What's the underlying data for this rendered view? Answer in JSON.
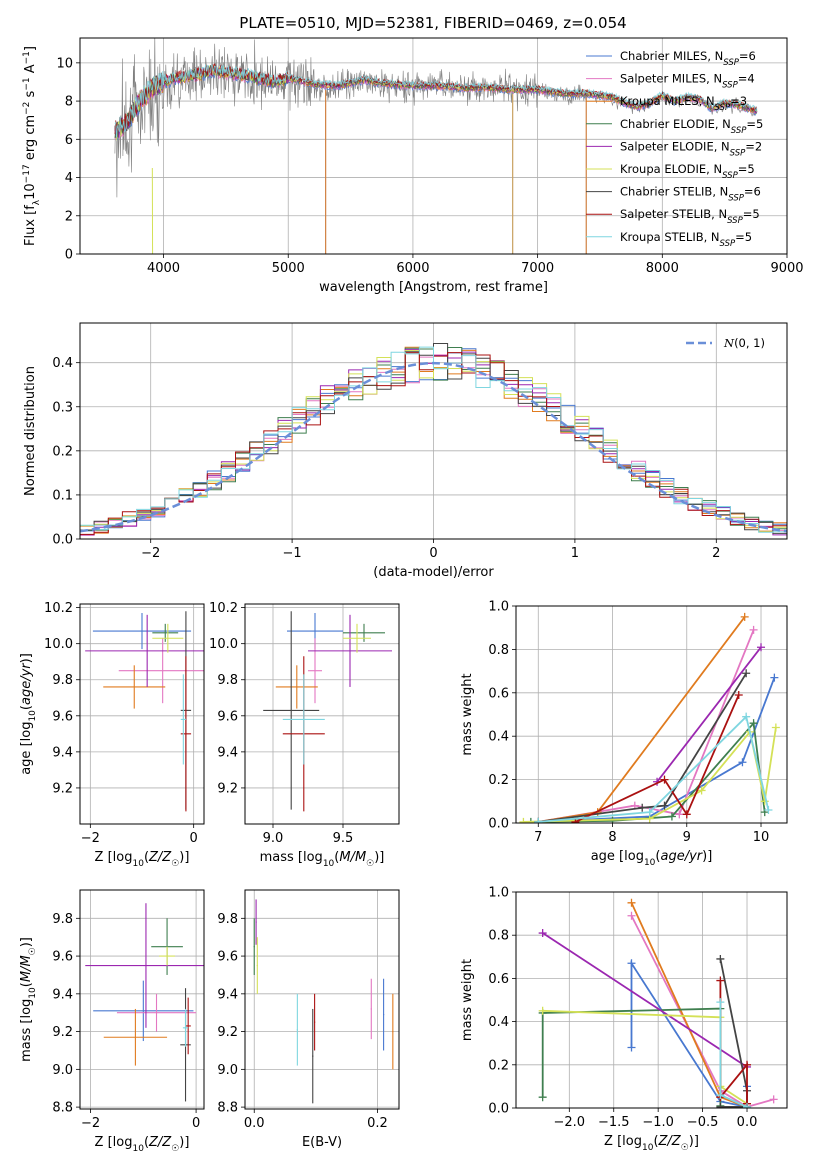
{
  "title": "PLATE=0510, MJD=52381, FIBERID=0469, z=0.054",
  "models": [
    {
      "name": "Chabrier MILES, N",
      "sub": "SSP",
      "n": "=6",
      "color": "#4878d0"
    },
    {
      "name": "Salpeter MILES, N",
      "sub": "SSP",
      "n": "=4",
      "color": "#e377c2"
    },
    {
      "name": "Kroupa MILES, N",
      "sub": "SSP",
      "n": "=3",
      "color": "#e07b1f"
    },
    {
      "name": "Chabrier ELODIE, N",
      "sub": "SSP",
      "n": "=5",
      "color": "#3f7f4f"
    },
    {
      "name": "Salpeter ELODIE, N",
      "sub": "SSP",
      "n": "=2",
      "color": "#9b27b0"
    },
    {
      "name": "Kroupa ELODIE, N",
      "sub": "SSP",
      "n": "=5",
      "color": "#d4e157"
    },
    {
      "name": "Chabrier STELIB, N",
      "sub": "SSP",
      "n": "=6",
      "color": "#444444"
    },
    {
      "name": "Salpeter STELIB, N",
      "sub": "SSP",
      "n": "=5",
      "color": "#aa1111"
    },
    {
      "name": "Kroupa STELIB, N",
      "sub": "SSP",
      "n": "=5",
      "color": "#7fd6e0"
    }
  ],
  "chart_data": [
    {
      "id": "spectrum",
      "type": "line",
      "title": "PLATE=0510, MJD=52381, FIBERID=0469, z=0.054",
      "xlabel": "wavelength [Angstrom, rest frame]",
      "ylabel": "Flux [f_λ 10^-17 erg cm^-2 s^-1 A^-1]",
      "xlim": [
        3330,
        9000
      ],
      "ylim": [
        0,
        11.3
      ],
      "xticks": [
        4000,
        5000,
        6000,
        7000,
        8000,
        9000
      ],
      "yticks": [
        0,
        2,
        4,
        6,
        8,
        10
      ],
      "continuum": {
        "x": [
          3610,
          3700,
          3800,
          3900,
          4000,
          4100,
          4200,
          4300,
          4400,
          4500,
          4600,
          4700,
          4800,
          4900,
          5000,
          5100,
          5200,
          5300,
          5400,
          5500,
          5600,
          5700,
          5800,
          5900,
          6000,
          6100,
          6200,
          6300,
          6400,
          6500,
          6600,
          6700,
          6800,
          6900,
          7000,
          7100,
          7200,
          7300,
          7400
        ],
        "y": [
          6.6,
          6.9,
          8.0,
          8.5,
          8.8,
          9.1,
          9.3,
          9.4,
          9.5,
          9.5,
          9.4,
          9.3,
          9.2,
          9.1,
          9.2,
          9.0,
          8.9,
          8.7,
          8.8,
          8.9,
          9.0,
          8.9,
          8.8,
          8.7,
          8.8,
          8.9,
          8.8,
          8.7,
          8.8,
          8.6,
          8.7,
          8.8,
          8.6,
          8.5,
          8.6,
          8.4,
          8.3,
          8.4,
          8.3
        ]
      },
      "model_continuum": {
        "x": [
          3610,
          3700,
          3800,
          3900,
          4000,
          4100,
          4200,
          4300,
          4400,
          4500,
          4600,
          4700,
          4800,
          4900,
          5000,
          5200,
          5400,
          5600,
          5800,
          6000,
          6200,
          6400,
          6600,
          6800,
          7000,
          7200,
          7400,
          7600,
          7700,
          7800,
          7900,
          8000,
          8100,
          8200,
          8300,
          8400,
          8500,
          8600,
          8800
        ],
        "y": [
          6.4,
          6.8,
          7.9,
          8.6,
          9.0,
          9.2,
          9.3,
          9.4,
          9.6,
          9.5,
          9.4,
          9.3,
          9.1,
          9.0,
          9.2,
          8.9,
          8.8,
          9.1,
          8.9,
          8.8,
          8.8,
          8.7,
          8.7,
          8.6,
          8.6,
          8.4,
          8.4,
          8.2,
          7.9,
          7.7,
          7.9,
          8.3,
          8.0,
          8.2,
          8.1,
          7.6,
          7.9,
          7.8,
          7.4
        ]
      }
    },
    {
      "id": "residuals",
      "type": "histogram",
      "xlabel": "(data-model)/error",
      "ylabel": "Normed distribution",
      "xlim": [
        -2.5,
        2.5
      ],
      "ylim": [
        0,
        0.49
      ],
      "xticks": [
        -2,
        -1,
        0,
        1,
        2
      ],
      "yticks": [
        0.0,
        0.1,
        0.2,
        0.3,
        0.4
      ],
      "reference": {
        "label": "N(0,1)",
        "mu": 0,
        "sigma": 1
      },
      "bin_edges_start": -2.5,
      "bin_width": 0.1,
      "reference_hist": [
        0.02,
        0.028,
        0.035,
        0.045,
        0.055,
        0.068,
        0.082,
        0.098,
        0.112,
        0.132,
        0.152,
        0.172,
        0.195,
        0.222,
        0.245,
        0.268,
        0.29,
        0.315,
        0.332,
        0.348,
        0.362,
        0.375,
        0.388,
        0.395,
        0.4,
        0.402,
        0.398,
        0.392,
        0.38,
        0.368,
        0.352,
        0.335,
        0.318,
        0.296,
        0.272,
        0.25,
        0.225,
        0.2,
        0.176,
        0.155,
        0.135,
        0.116,
        0.1,
        0.083,
        0.07,
        0.057,
        0.047,
        0.037,
        0.03,
        0.023
      ]
    },
    {
      "id": "age_vs_Z",
      "type": "scatter",
      "xlabel": "Z [log10(Z/Z☉)]",
      "ylabel": "age [log10(age/yr)]",
      "xlim": [
        -2.2,
        0.2
      ],
      "ylim": [
        9.0,
        10.22
      ],
      "xticks": [
        -2,
        0
      ],
      "yticks": [
        9.2,
        9.4,
        9.6,
        9.8,
        10.0,
        10.2
      ],
      "points": [
        {
          "model": 0,
          "x": -1.0,
          "y": 10.07,
          "xerr": 0.95,
          "yerr": 0.1
        },
        {
          "model": 1,
          "x": -0.6,
          "y": 9.85,
          "xerr": 0.85,
          "yerr": 0.18
        },
        {
          "model": 2,
          "x": -1.15,
          "y": 9.76,
          "xerr": 0.6,
          "yerr": 0.12
        },
        {
          "model": 3,
          "x": -0.55,
          "y": 10.06,
          "xerr": 0.25,
          "yerr": 0.05
        },
        {
          "model": 4,
          "x": -0.9,
          "y": 9.96,
          "xerr": 1.2,
          "yerr": 0.2
        },
        {
          "model": 5,
          "x": -0.5,
          "y": 10.03,
          "xerr": 0.3,
          "yerr": 0.08
        },
        {
          "model": 6,
          "x": -0.15,
          "y": 9.63,
          "xerr": 0.1,
          "yerr": 0.55
        },
        {
          "model": 7,
          "x": -0.15,
          "y": 9.5,
          "xerr": 0.1,
          "yerr": 0.43
        },
        {
          "model": 8,
          "x": -0.2,
          "y": 9.58,
          "xerr": 0.05,
          "yerr": 0.25
        }
      ]
    },
    {
      "id": "age_vs_mass",
      "type": "scatter",
      "xlabel": "mass [log10(M/M☉)]",
      "ylabel": "",
      "xlim": [
        8.8,
        9.9
      ],
      "ylim": [
        9.0,
        10.22
      ],
      "xticks": [
        9.0,
        9.5
      ],
      "yticks": [
        9.2,
        9.4,
        9.6,
        9.8,
        10.0,
        10.2
      ],
      "points": [
        {
          "model": 0,
          "x": 9.3,
          "y": 10.07,
          "xerr": 0.2,
          "yerr": 0.1
        },
        {
          "model": 1,
          "x": 9.3,
          "y": 9.85,
          "xerr": 0.05,
          "yerr": 0.18
        },
        {
          "model": 2,
          "x": 9.17,
          "y": 9.76,
          "xerr": 0.15,
          "yerr": 0.12
        },
        {
          "model": 3,
          "x": 9.65,
          "y": 10.06,
          "xerr": 0.15,
          "yerr": 0.05
        },
        {
          "model": 4,
          "x": 9.55,
          "y": 9.96,
          "xerr": 0.3,
          "yerr": 0.2
        },
        {
          "model": 5,
          "x": 9.6,
          "y": 10.03,
          "xerr": 0.1,
          "yerr": 0.08
        },
        {
          "model": 6,
          "x": 9.13,
          "y": 9.63,
          "xerr": 0.2,
          "yerr": 0.55
        },
        {
          "model": 7,
          "x": 9.22,
          "y": 9.5,
          "xerr": 0.15,
          "yerr": 0.43
        },
        {
          "model": 8,
          "x": 9.22,
          "y": 9.58,
          "xerr": 0.15,
          "yerr": 0.25
        }
      ]
    },
    {
      "id": "massweight_vs_age",
      "type": "line",
      "xlabel": "age [log10(age/yr)]",
      "ylabel": "mass weight",
      "xlim": [
        6.7,
        10.35
      ],
      "ylim": [
        0,
        1.0
      ],
      "xticks": [
        7,
        8,
        9,
        10
      ],
      "yticks": [
        0.0,
        0.2,
        0.4,
        0.6,
        0.8,
        1.0
      ],
      "series": [
        {
          "model": 0,
          "x": [
            7.0,
            8.5,
            9.75,
            10.18
          ],
          "y": [
            0.005,
            0.03,
            0.28,
            0.67
          ]
        },
        {
          "model": 1,
          "x": [
            7.0,
            8.3,
            8.9,
            9.9
          ],
          "y": [
            0.005,
            0.08,
            0.04,
            0.89
          ]
        },
        {
          "model": 2,
          "x": [
            7.0,
            7.8,
            9.78
          ],
          "y": [
            0.005,
            0.05,
            0.95
          ]
        },
        {
          "model": 3,
          "x": [
            6.9,
            8.0,
            8.8,
            9.9,
            10.05
          ],
          "y": [
            0.005,
            0.01,
            0.03,
            0.46,
            0.05
          ]
        },
        {
          "model": 4,
          "x": [
            8.6,
            10.0
          ],
          "y": [
            0.19,
            0.81
          ]
        },
        {
          "model": 5,
          "x": [
            6.8,
            8.5,
            9.2,
            9.85,
            10.05,
            10.2
          ],
          "y": [
            0.005,
            0.02,
            0.15,
            0.42,
            0.1,
            0.44
          ]
        },
        {
          "model": 6,
          "x": [
            7.0,
            8.4,
            8.7,
            9.8
          ],
          "y": [
            0.005,
            0.07,
            0.08,
            0.69
          ]
        },
        {
          "model": 7,
          "x": [
            7.5,
            8.7,
            9.0,
            9.7
          ],
          "y": [
            0.005,
            0.2,
            0.04,
            0.59
          ]
        },
        {
          "model": 8,
          "x": [
            7.0,
            8.5,
            9.8,
            10.1
          ],
          "y": [
            0.005,
            0.05,
            0.49,
            0.06
          ]
        }
      ]
    },
    {
      "id": "mass_vs_Z",
      "type": "scatter",
      "xlabel": "Z [log10(Z/Z☉)]",
      "ylabel": "mass [log10(M/M☉)]",
      "xlim": [
        -2.2,
        0.15
      ],
      "ylim": [
        8.79,
        9.95
      ],
      "xticks": [
        -2,
        0
      ],
      "yticks": [
        8.8,
        9.0,
        9.2,
        9.4,
        9.6,
        9.8
      ],
      "points": [
        {
          "model": 0,
          "x": -1.0,
          "y": 9.31,
          "xerr": 0.95,
          "yerr": 0.16
        },
        {
          "model": 1,
          "x": -0.75,
          "y": 9.3,
          "xerr": 0.75,
          "yerr": 0.1
        },
        {
          "model": 2,
          "x": -1.15,
          "y": 9.17,
          "xerr": 0.6,
          "yerr": 0.15
        },
        {
          "model": 3,
          "x": -0.55,
          "y": 9.65,
          "xerr": 0.3,
          "yerr": 0.15
        },
        {
          "model": 4,
          "x": -0.95,
          "y": 9.55,
          "xerr": 1.15,
          "yerr": 0.33
        },
        {
          "model": 5,
          "x": -0.55,
          "y": 9.6,
          "xerr": 0.15,
          "yerr": 0.05
        },
        {
          "model": 6,
          "x": -0.2,
          "y": 9.13,
          "xerr": 0.1,
          "yerr": 0.3
        },
        {
          "model": 7,
          "x": -0.15,
          "y": 9.23,
          "xerr": 0.05,
          "yerr": 0.15
        },
        {
          "model": 8,
          "x": -0.2,
          "y": 9.22,
          "xerr": 0.05,
          "yerr": 0.1
        }
      ]
    },
    {
      "id": "mass_vs_ebv",
      "type": "scatter",
      "xlabel": "E(B-V)",
      "ylabel": "",
      "xlim": [
        -0.015,
        0.235
      ],
      "ylim": [
        8.79,
        9.95
      ],
      "xticks": [
        0.0,
        0.2
      ],
      "yticks": [
        8.8,
        9.0,
        9.2,
        9.4,
        9.6,
        9.8
      ],
      "points": [
        {
          "model": 0,
          "x": 0.21,
          "y": 9.29,
          "xerr": 0,
          "yerr": 0.19
        },
        {
          "model": 1,
          "x": 0.19,
          "y": 9.32,
          "xerr": 0,
          "yerr": 0.16
        },
        {
          "model": 2,
          "x": 0.225,
          "y": 9.2,
          "xerr": 0,
          "yerr": 0.2
        },
        {
          "model": 3,
          "x": 0.0,
          "y": 9.65,
          "xerr": 0,
          "yerr": 0.15
        },
        {
          "model": 4,
          "x": 0.003,
          "y": 9.78,
          "xerr": 0,
          "yerr": 0.12
        },
        {
          "model": 5,
          "x": 0.005,
          "y": 9.55,
          "xerr": 0,
          "yerr": 0.15
        },
        {
          "model": 6,
          "x": 0.095,
          "y": 9.07,
          "xerr": 0,
          "yerr": 0.25
        },
        {
          "model": 7,
          "x": 0.098,
          "y": 9.25,
          "xerr": 0,
          "yerr": 0.15
        },
        {
          "model": 8,
          "x": 0.07,
          "y": 9.21,
          "xerr": 0,
          "yerr": 0.19
        }
      ]
    },
    {
      "id": "massweight_vs_Z",
      "type": "line",
      "xlabel": "Z [log10(Z/Z☉)]",
      "ylabel": "mass weight",
      "xlim": [
        -2.6,
        0.45
      ],
      "ylim": [
        0,
        1.0
      ],
      "xticks": [
        -2.0,
        -1.5,
        -1.0,
        -0.5,
        0.0
      ],
      "yticks": [
        0.0,
        0.2,
        0.4,
        0.6,
        0.8,
        1.0
      ],
      "series": [
        {
          "model": 0,
          "x": [
            -1.3,
            -1.3,
            -0.3,
            0.0,
            0.0
          ],
          "y": [
            0.28,
            0.67,
            0.03,
            0.005,
            0.1
          ]
        },
        {
          "model": 1,
          "x": [
            -1.3,
            -0.3,
            0.0,
            0.3
          ],
          "y": [
            0.89,
            0.08,
            0.005,
            0.04
          ]
        },
        {
          "model": 2,
          "x": [
            -1.3,
            -0.3,
            0.0
          ],
          "y": [
            0.95,
            0.05,
            0.005
          ]
        },
        {
          "model": 3,
          "x": [
            -2.3,
            -2.3,
            -0.3,
            -0.3
          ],
          "y": [
            0.05,
            0.44,
            0.46,
            0.01
          ]
        },
        {
          "model": 4,
          "x": [
            -2.3,
            0.0
          ],
          "y": [
            0.81,
            0.19
          ]
        },
        {
          "model": 5,
          "x": [
            -2.3,
            -0.3,
            -0.3,
            0.0
          ],
          "y": [
            0.45,
            0.42,
            0.1,
            0.02
          ]
        },
        {
          "model": 6,
          "x": [
            -0.3,
            0.0,
            0.0,
            -0.3
          ],
          "y": [
            0.69,
            0.08,
            0.005,
            0.005
          ]
        },
        {
          "model": 7,
          "x": [
            -0.3,
            -0.3,
            0.0,
            0.0
          ],
          "y": [
            0.59,
            0.05,
            0.2,
            0.02
          ]
        },
        {
          "model": 8,
          "x": [
            -0.3,
            -0.3,
            0.0
          ],
          "y": [
            0.49,
            0.06,
            0.005
          ]
        }
      ]
    }
  ]
}
